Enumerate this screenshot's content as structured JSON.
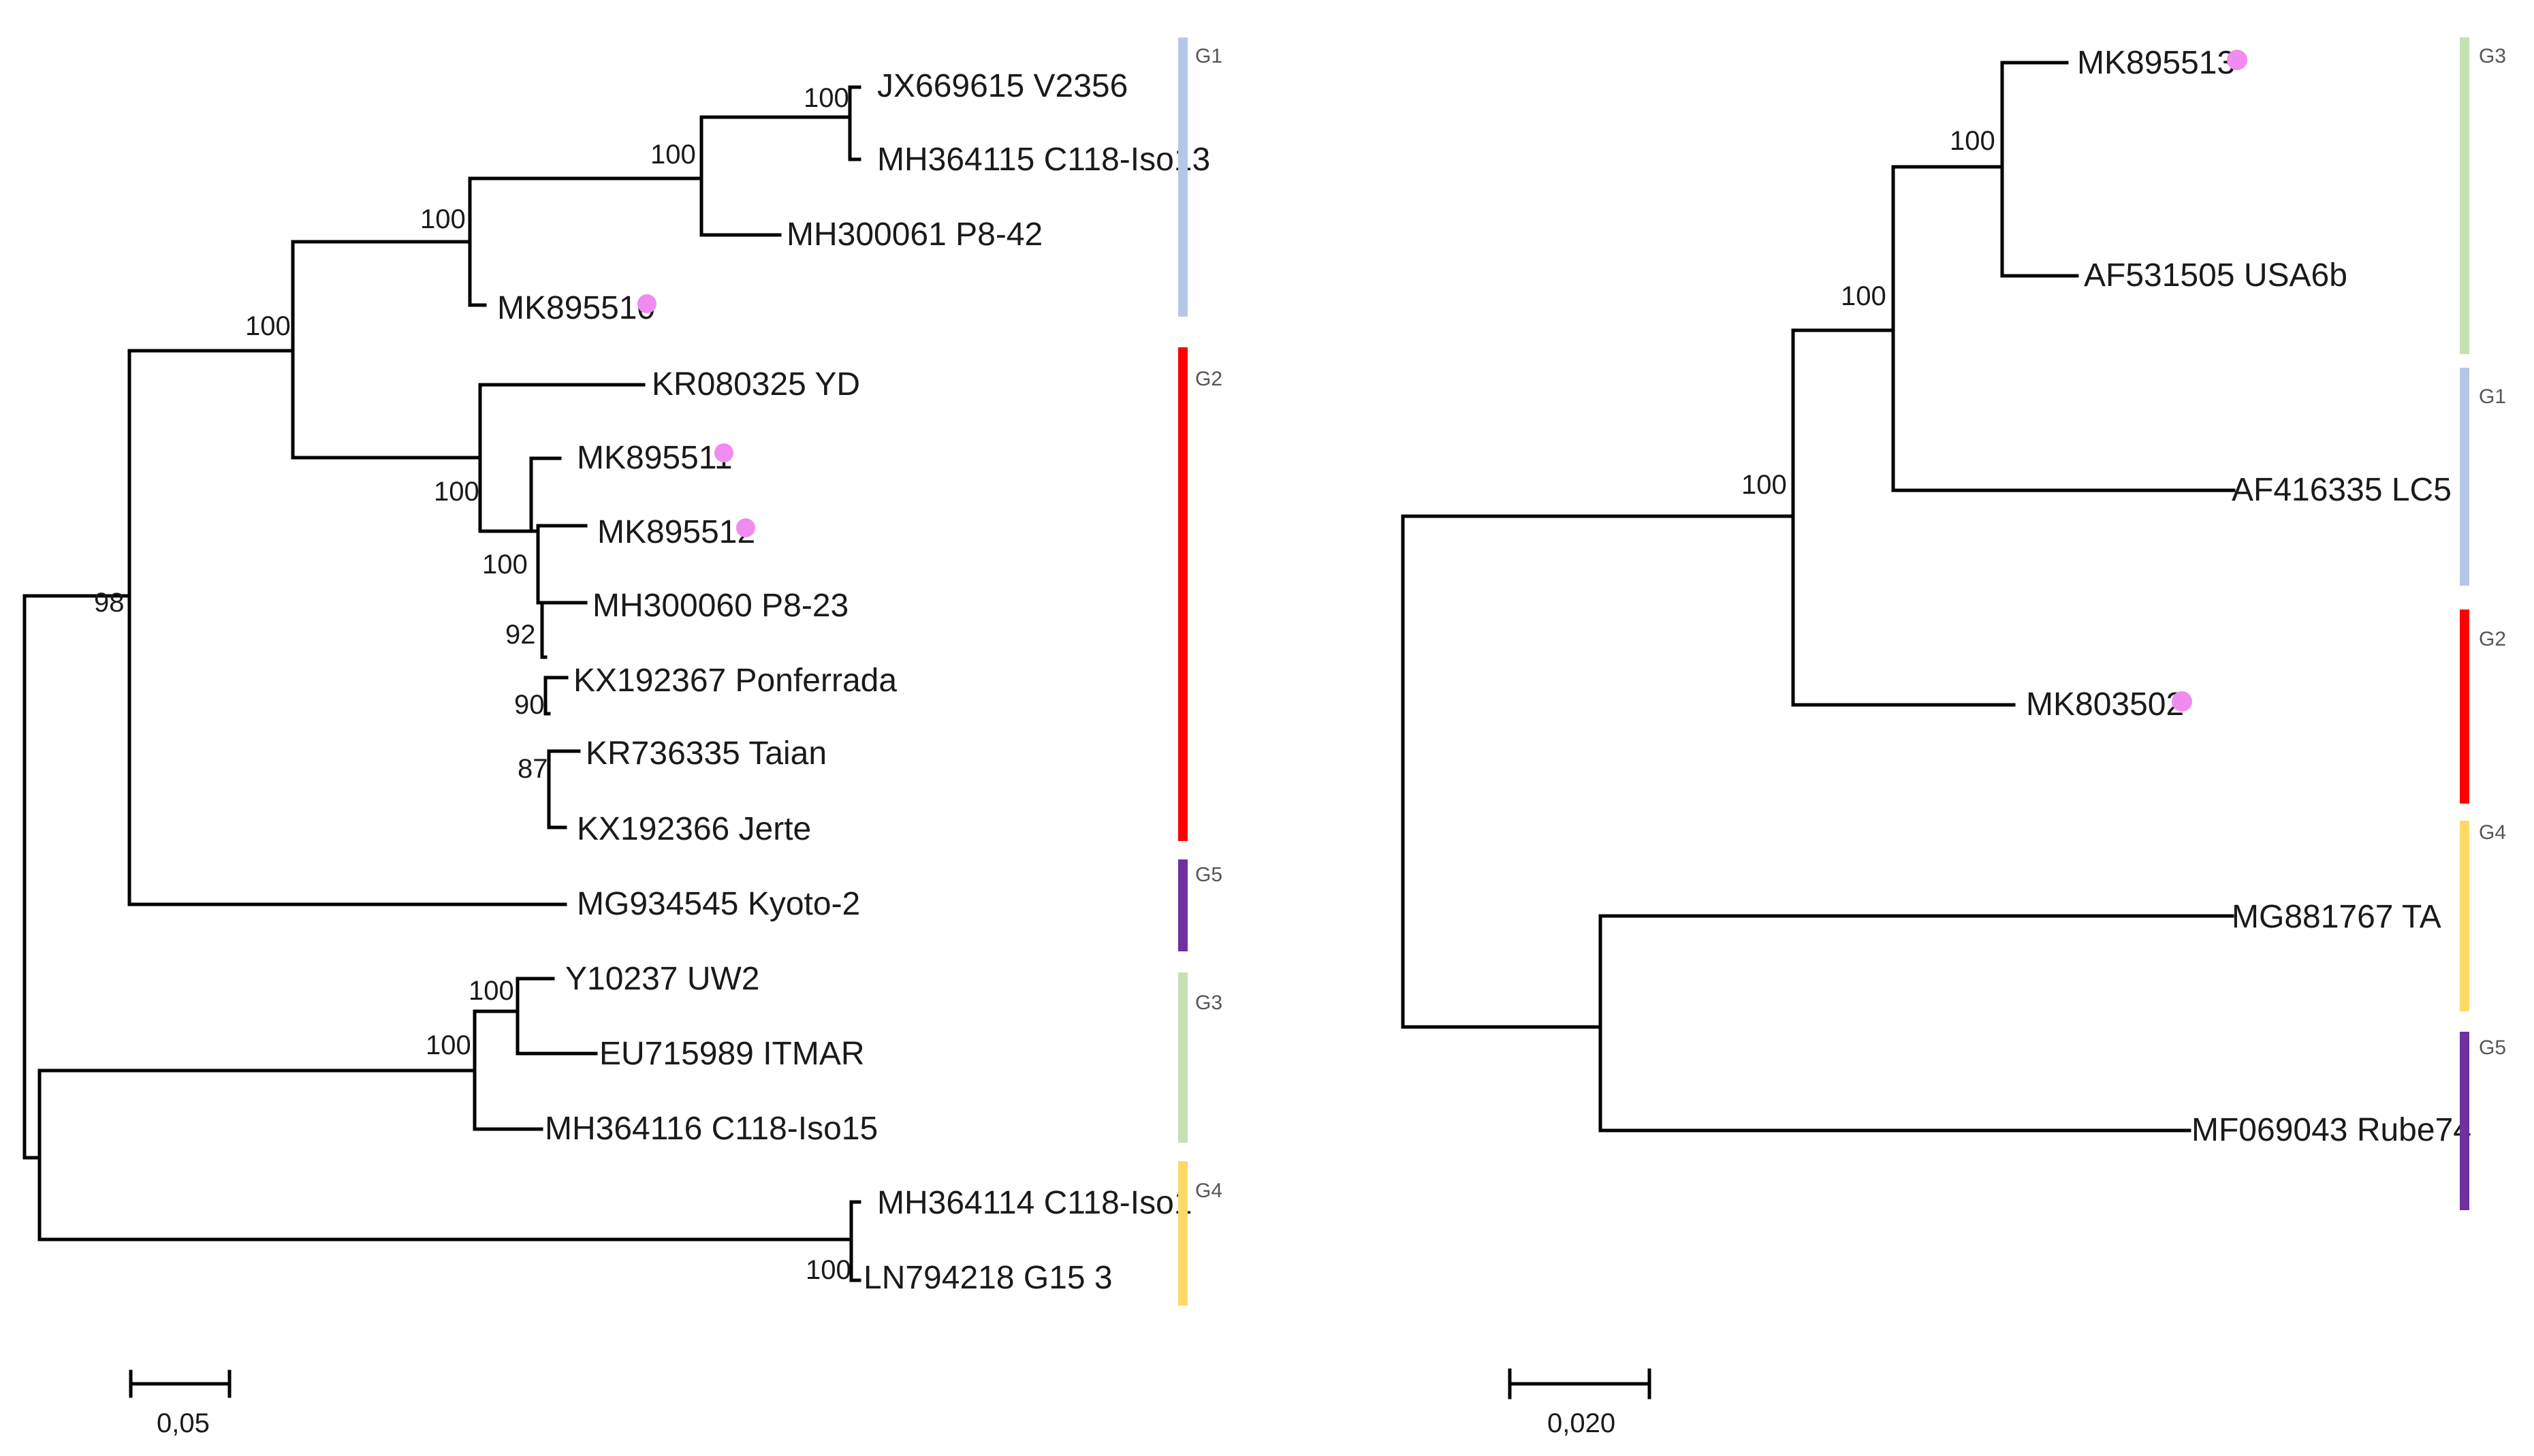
{
  "left_tree": {
    "taxa": [
      {
        "label": "JX669615 V2356",
        "marked": false
      },
      {
        "label": "MH364115 C118-Iso13",
        "marked": false
      },
      {
        "label": "MH300061 P8-42",
        "marked": false
      },
      {
        "label": "MK895510",
        "marked": true
      },
      {
        "label": "KR080325 YD",
        "marked": false
      },
      {
        "label": "MK895511",
        "marked": true
      },
      {
        "label": "MK895512",
        "marked": true
      },
      {
        "label": "MH300060 P8-23",
        "marked": false
      },
      {
        "label": "KX192367 Ponferrada",
        "marked": false
      },
      {
        "label": "KR736335 Taian",
        "marked": false
      },
      {
        "label": "KX192366 Jerte",
        "marked": false
      },
      {
        "label": "MG934545 Kyoto-2",
        "marked": false
      },
      {
        "label": "Y10237 UW2",
        "marked": false
      },
      {
        "label": "EU715989 ITMAR",
        "marked": false
      },
      {
        "label": "MH364116 C118-Iso15",
        "marked": false
      },
      {
        "label": "MH364114 C118-Iso1",
        "marked": false
      },
      {
        "label": "LN794218 G15 3",
        "marked": false
      }
    ],
    "bootstrap": [
      "100",
      "100",
      "100",
      "100",
      "100",
      "100",
      "92",
      "90",
      "87",
      "98",
      "100",
      "100",
      "100"
    ],
    "groups": [
      {
        "label": "G1",
        "color": "#b4c7e7"
      },
      {
        "label": "G2",
        "color": "#ff0000"
      },
      {
        "label": "G5",
        "color": "#7030a0"
      },
      {
        "label": "G3",
        "color": "#c5e0b4"
      },
      {
        "label": "G4",
        "color": "#ffd966"
      }
    ],
    "scale_bar": {
      "label": "0,05",
      "value": 0.05
    }
  },
  "right_tree": {
    "taxa": [
      {
        "label": "MK895513",
        "marked": true
      },
      {
        "label": "AF531505 USA6b",
        "marked": false
      },
      {
        "label": "AF416335 LC5",
        "marked": false
      },
      {
        "label": "MK803502",
        "marked": true
      },
      {
        "label": "MG881767 TA",
        "marked": false
      },
      {
        "label": "MF069043 Rube74",
        "marked": false
      }
    ],
    "bootstrap": [
      "100",
      "100",
      "100"
    ],
    "groups": [
      {
        "label": "G3",
        "color": "#c5e0b4"
      },
      {
        "label": "G1",
        "color": "#b4c7e7"
      },
      {
        "label": "G2",
        "color": "#ff0000"
      },
      {
        "label": "G4",
        "color": "#ffd966"
      },
      {
        "label": "G5",
        "color": "#7030a0"
      }
    ],
    "scale_bar": {
      "label": "0,020",
      "value": 0.02
    }
  },
  "colors": {
    "marker": "#f08cf0",
    "branch": "#000000"
  }
}
